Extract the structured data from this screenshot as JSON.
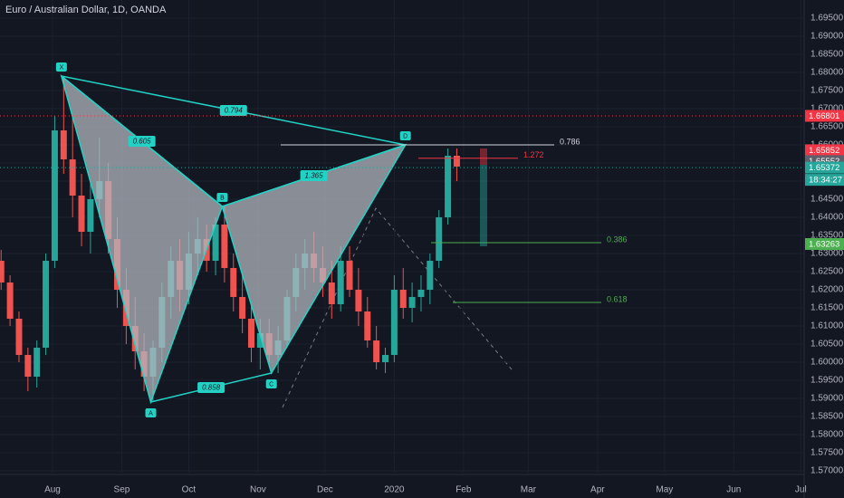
{
  "chart_data": {
    "type": "candlestick",
    "title": "Euro / Australian Dollar, 1D, OANDA",
    "up_color": "#26a69a",
    "down_color": "#ef5350",
    "xlim": [
      7.5,
      367.5
    ],
    "ylim": [
      1.5695,
      1.7
    ],
    "xticks": [
      {
        "value": 31,
        "label": "Aug"
      },
      {
        "value": 62,
        "label": "Sep"
      },
      {
        "value": 92,
        "label": "Oct"
      },
      {
        "value": 123,
        "label": "Nov"
      },
      {
        "value": 153,
        "label": "Dec"
      },
      {
        "value": 184,
        "label": "2020"
      },
      {
        "value": 215,
        "label": "Feb"
      },
      {
        "value": 244,
        "label": "Mar"
      },
      {
        "value": 275,
        "label": "Apr"
      },
      {
        "value": 305,
        "label": "May"
      },
      {
        "value": 336,
        "label": "Jun"
      },
      {
        "value": 366,
        "label": "Jul"
      }
    ],
    "yticks": [
      {
        "value": 1.57,
        "label": "1.57000"
      },
      {
        "value": 1.575,
        "label": "1.57500"
      },
      {
        "value": 1.58,
        "label": "1.58000"
      },
      {
        "value": 1.585,
        "label": "1.58500"
      },
      {
        "value": 1.59,
        "label": "1.59000"
      },
      {
        "value": 1.595,
        "label": "1.59500"
      },
      {
        "value": 1.6,
        "label": "1.60000"
      },
      {
        "value": 1.605,
        "label": "1.60500"
      },
      {
        "value": 1.61,
        "label": "1.61000"
      },
      {
        "value": 1.615,
        "label": "1.61500"
      },
      {
        "value": 1.62,
        "label": "1.62000"
      },
      {
        "value": 1.625,
        "label": "1.62500"
      },
      {
        "value": 1.63,
        "label": "1.63000"
      },
      {
        "value": 1.635,
        "label": "1.63500"
      },
      {
        "value": 1.64,
        "label": "1.64000"
      },
      {
        "value": 1.645,
        "label": "1.64500"
      },
      {
        "value": 1.65,
        "label": "1.65000"
      },
      {
        "value": 1.655,
        "label": "1.65500"
      },
      {
        "value": 1.66,
        "label": "1.66000"
      },
      {
        "value": 1.665,
        "label": "1.66500"
      },
      {
        "value": 1.67,
        "label": "1.67000"
      },
      {
        "value": 1.675,
        "label": "1.67500"
      },
      {
        "value": 1.68,
        "label": "1.68000"
      },
      {
        "value": 1.685,
        "label": "1.68500"
      },
      {
        "value": 1.69,
        "label": "1.69000"
      },
      {
        "value": 1.695,
        "label": "1.69500"
      }
    ],
    "grid": true,
    "x": [
      8,
      12,
      16,
      20,
      24,
      28,
      32,
      36,
      40,
      44,
      48,
      52,
      56,
      60,
      64,
      68,
      72,
      76,
      80,
      84,
      88,
      92,
      96,
      100,
      104,
      108,
      112,
      116,
      120,
      124,
      128,
      132,
      136,
      140,
      144,
      148,
      152,
      156,
      160,
      164,
      168,
      172,
      176,
      180,
      184,
      188,
      192,
      196,
      200,
      204,
      208,
      212
    ],
    "open": [
      1.628,
      1.622,
      1.612,
      1.602,
      1.596,
      1.604,
      1.628,
      1.664,
      1.656,
      1.646,
      1.636,
      1.645,
      1.65,
      1.634,
      1.62,
      1.61,
      1.603,
      1.596,
      1.604,
      1.618,
      1.628,
      1.62,
      1.63,
      1.634,
      1.628,
      1.638,
      1.626,
      1.618,
      1.612,
      1.604,
      1.608,
      1.602,
      1.606,
      1.618,
      1.626,
      1.63,
      1.626,
      1.622,
      1.616,
      1.628,
      1.62,
      1.614,
      1.606,
      1.6,
      1.602,
      1.62,
      1.615,
      1.618,
      1.62,
      1.628,
      1.64,
      1.657
    ],
    "high": [
      1.631,
      1.624,
      1.614,
      1.604,
      1.606,
      1.63,
      1.668,
      1.679,
      1.668,
      1.652,
      1.65,
      1.662,
      1.655,
      1.64,
      1.626,
      1.618,
      1.608,
      1.606,
      1.622,
      1.632,
      1.634,
      1.636,
      1.64,
      1.638,
      1.64,
      1.643,
      1.63,
      1.624,
      1.616,
      1.612,
      1.612,
      1.61,
      1.62,
      1.63,
      1.634,
      1.636,
      1.632,
      1.628,
      1.632,
      1.632,
      1.626,
      1.618,
      1.61,
      1.604,
      1.624,
      1.626,
      1.622,
      1.624,
      1.63,
      1.642,
      1.659,
      1.659
    ],
    "low": [
      1.62,
      1.61,
      1.6,
      1.592,
      1.593,
      1.602,
      1.626,
      1.652,
      1.64,
      1.632,
      1.63,
      1.64,
      1.63,
      1.615,
      1.605,
      1.598,
      1.592,
      1.589,
      1.6,
      1.612,
      1.614,
      1.616,
      1.624,
      1.625,
      1.624,
      1.622,
      1.614,
      1.608,
      1.6,
      1.598,
      1.6,
      1.597,
      1.604,
      1.614,
      1.62,
      1.622,
      1.618,
      1.612,
      1.614,
      1.618,
      1.61,
      1.604,
      1.598,
      1.597,
      1.6,
      1.612,
      1.611,
      1.614,
      1.616,
      1.626,
      1.638,
      1.65
    ],
    "close": [
      1.622,
      1.612,
      1.602,
      1.596,
      1.604,
      1.628,
      1.664,
      1.656,
      1.646,
      1.636,
      1.645,
      1.65,
      1.634,
      1.62,
      1.61,
      1.603,
      1.596,
      1.604,
      1.618,
      1.628,
      1.62,
      1.63,
      1.634,
      1.628,
      1.638,
      1.626,
      1.618,
      1.612,
      1.604,
      1.608,
      1.602,
      1.606,
      1.618,
      1.626,
      1.63,
      1.626,
      1.622,
      1.616,
      1.628,
      1.62,
      1.614,
      1.606,
      1.6,
      1.602,
      1.62,
      1.615,
      1.618,
      1.62,
      1.628,
      1.64,
      1.657,
      1.654
    ],
    "pattern": {
      "color": "#22d3c5",
      "points": [
        {
          "label": "X",
          "x": 35,
          "y": 1.679
        },
        {
          "label": "A",
          "x": 75,
          "y": 1.589
        },
        {
          "label": "B",
          "x": 107,
          "y": 1.643
        },
        {
          "label": "C",
          "x": 129,
          "y": 1.597
        },
        {
          "label": "D",
          "x": 189,
          "y": 1.66
        }
      ],
      "ratios": [
        "0.794",
        "0.605",
        "0.858",
        "1.365"
      ]
    },
    "levels": [
      {
        "label": "0.786",
        "value": 1.66,
        "color": "#d1d4dc"
      },
      {
        "label": "1.272",
        "value": 1.6563,
        "color": "#f23645"
      },
      {
        "label": "0.386",
        "value": 1.633,
        "color": "#4caf50"
      },
      {
        "label": "0.618",
        "value": 1.6165,
        "color": "#4caf50"
      }
    ],
    "price_markers": [
      {
        "value": 1.66801,
        "color": "#f23645"
      },
      {
        "value": 1.65852,
        "color": "#f23645"
      },
      {
        "value": 1.65552,
        "color": "#5d606b"
      },
      {
        "value": 1.65372,
        "color": "#26a69a"
      },
      {
        "value": 1.63263,
        "color": "#4caf50"
      }
    ],
    "countdown": "18:34:27"
  }
}
